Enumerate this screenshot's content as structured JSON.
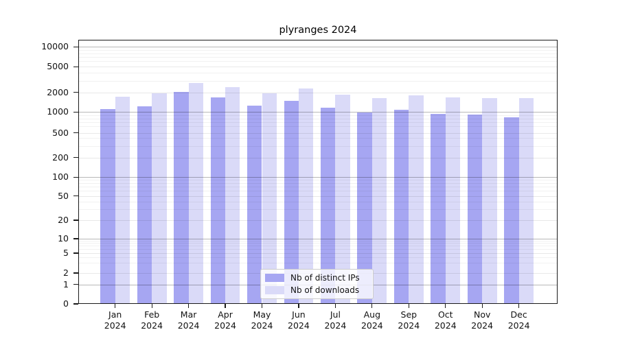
{
  "title": "plyranges 2024",
  "colors": {
    "ips_bar": "#a6a6f2",
    "downloads_bar": "#dadaf8",
    "axis": "#1a1a1a",
    "grid_major": "rgba(0,0,0,0.28)",
    "grid_labeled": "rgba(0,0,0,0.09)",
    "grid_minor": "rgba(0,0,0,0.055)"
  },
  "y_axis": {
    "tick_labels": [
      "10000",
      "5000",
      "2000",
      "1000",
      "500",
      "200",
      "100",
      "50",
      "20",
      "10",
      "5",
      "2",
      "1",
      "0"
    ]
  },
  "x_axis": {
    "months": [
      "Jan",
      "Feb",
      "Mar",
      "Apr",
      "May",
      "Jun",
      "Jul",
      "Aug",
      "Sep",
      "Oct",
      "Nov",
      "Dec"
    ],
    "year": "2024"
  },
  "legend": {
    "items": [
      {
        "label": "Nb of distinct IPs",
        "series": "ips"
      },
      {
        "label": "Nb of downloads",
        "series": "downloads"
      }
    ]
  },
  "chart_data": {
    "type": "bar",
    "title": "plyranges 2024",
    "xlabel": "",
    "ylabel": "",
    "categories": [
      "Jan 2024",
      "Feb 2024",
      "Mar 2024",
      "Apr 2024",
      "May 2024",
      "Jun 2024",
      "Jul 2024",
      "Aug 2024",
      "Sep 2024",
      "Oct 2024",
      "Nov 2024",
      "Dec 2024"
    ],
    "series": [
      {
        "name": "Nb of distinct IPs",
        "color": "#a6a6f2",
        "values": [
          1120,
          1230,
          2050,
          1680,
          1240,
          1500,
          1170,
          980,
          1085,
          935,
          925,
          830
        ]
      },
      {
        "name": "Nb of downloads",
        "color": "#dadaf8",
        "values": [
          1730,
          1960,
          2800,
          2430,
          1950,
          2300,
          1830,
          1625,
          1800,
          1660,
          1625,
          1625
        ]
      }
    ],
    "y_scale": "log-like (decades 1-10000) with 0 baseline",
    "y_ticks": [
      0,
      1,
      2,
      5,
      10,
      20,
      50,
      100,
      200,
      500,
      1000,
      2000,
      5000,
      10000
    ],
    "grid": "horizontal log major+minor gridlines",
    "legend_position": "lower center"
  }
}
